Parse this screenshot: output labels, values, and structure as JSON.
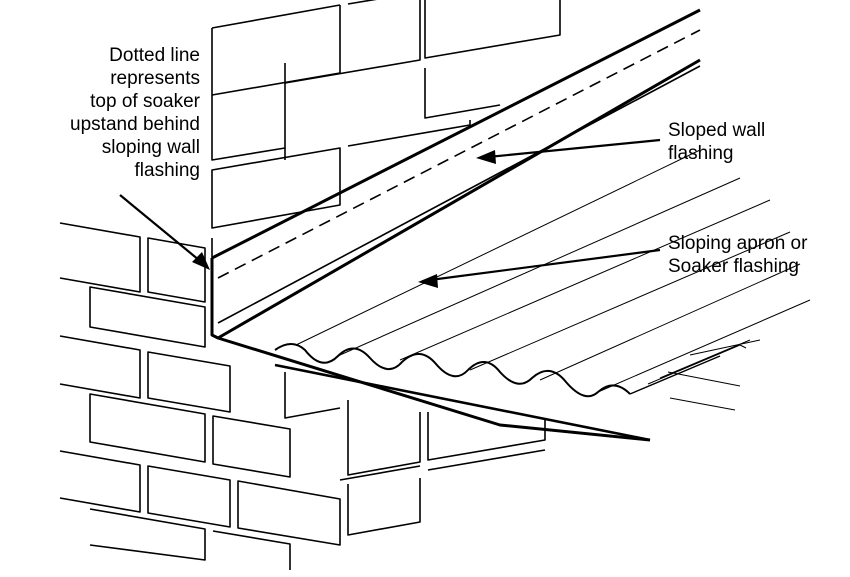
{
  "labels": {
    "dotted_line": [
      "Dotted line",
      "represents",
      "top of soaker",
      "upstand behind",
      "sloping wall",
      "flashing"
    ],
    "sloped_wall_flashing": [
      "Sloped wall",
      "flashing"
    ],
    "sloping_apron": [
      "Sloping apron or",
      "Soaker flashing"
    ]
  },
  "colors": {
    "line": "#000000",
    "background": "#ffffff"
  }
}
